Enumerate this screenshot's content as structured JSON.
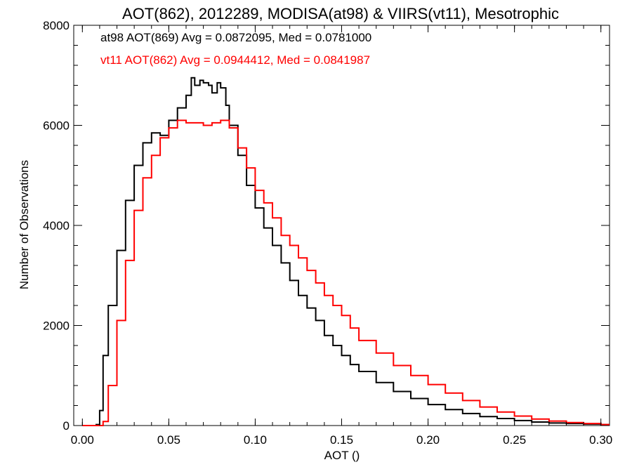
{
  "chart_data": {
    "type": "line",
    "title": "AOT(862), 2012289, MODISA(at98) & VIIRS(vt11), Mesotrophic",
    "xlabel": "AOT ()",
    "ylabel": "Number of Observations",
    "xlim": [
      -0.005,
      0.305
    ],
    "ylim": [
      0,
      8000
    ],
    "xticks": [
      "0.00",
      "0.05",
      "0.10",
      "0.15",
      "0.20",
      "0.25",
      "0.30"
    ],
    "yticks": [
      "0",
      "2000",
      "4000",
      "6000",
      "8000"
    ],
    "grid": false,
    "legend_position": "top-left",
    "series": [
      {
        "name": "at98 AOT(869) Avg = 0.0872095, Med = 0.0781000",
        "color": "#000000",
        "x": [
          0.0,
          0.005,
          0.008,
          0.01,
          0.012,
          0.015,
          0.02,
          0.025,
          0.03,
          0.035,
          0.04,
          0.045,
          0.05,
          0.055,
          0.06,
          0.063,
          0.065,
          0.068,
          0.07,
          0.073,
          0.075,
          0.078,
          0.08,
          0.083,
          0.085,
          0.09,
          0.095,
          0.1,
          0.105,
          0.11,
          0.115,
          0.12,
          0.125,
          0.13,
          0.135,
          0.14,
          0.145,
          0.15,
          0.155,
          0.16,
          0.17,
          0.18,
          0.19,
          0.2,
          0.21,
          0.22,
          0.23,
          0.24,
          0.25,
          0.26,
          0.27,
          0.28,
          0.29,
          0.3
        ],
        "y": [
          0,
          0,
          20,
          300,
          1400,
          2400,
          3500,
          4500,
          5200,
          5650,
          5850,
          5800,
          6100,
          6350,
          6600,
          6950,
          6800,
          6900,
          6850,
          6800,
          6650,
          6850,
          6750,
          6400,
          6000,
          5400,
          4800,
          4350,
          3950,
          3600,
          3250,
          2900,
          2600,
          2350,
          2100,
          1800,
          1600,
          1400,
          1220,
          1080,
          860,
          680,
          540,
          420,
          320,
          240,
          180,
          140,
          100,
          70,
          50,
          40,
          30,
          20
        ]
      },
      {
        "name": "vt11 AOT(862) Avg = 0.0944412, Med = 0.0841987",
        "color": "#ff0000",
        "x": [
          0.0,
          0.01,
          0.012,
          0.015,
          0.02,
          0.025,
          0.03,
          0.035,
          0.04,
          0.045,
          0.05,
          0.055,
          0.06,
          0.065,
          0.07,
          0.075,
          0.08,
          0.085,
          0.09,
          0.095,
          0.1,
          0.105,
          0.11,
          0.115,
          0.12,
          0.125,
          0.13,
          0.135,
          0.14,
          0.145,
          0.15,
          0.155,
          0.16,
          0.17,
          0.18,
          0.19,
          0.2,
          0.21,
          0.22,
          0.23,
          0.24,
          0.25,
          0.26,
          0.27,
          0.28,
          0.29,
          0.3
        ],
        "y": [
          0,
          0,
          80,
          800,
          2100,
          3300,
          4300,
          4950,
          5400,
          5750,
          5950,
          6100,
          6050,
          6050,
          6000,
          6050,
          6100,
          5950,
          5550,
          5150,
          4700,
          4450,
          4150,
          3800,
          3600,
          3350,
          3100,
          2850,
          2600,
          2400,
          2200,
          1950,
          1700,
          1450,
          1200,
          1000,
          820,
          650,
          500,
          370,
          270,
          190,
          130,
          90,
          60,
          40,
          20
        ]
      }
    ]
  }
}
